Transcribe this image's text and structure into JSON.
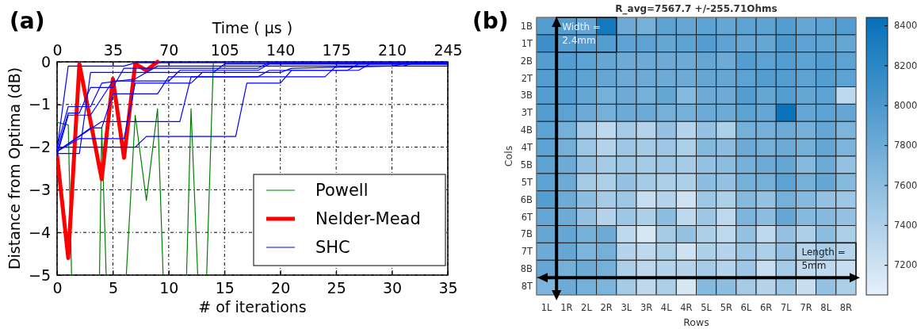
{
  "chart_data": [
    {
      "type": "line",
      "annotations": [
        "(a)"
      ],
      "xlabel": "# of iterations",
      "ylabel": "Distance from Optima (dB)",
      "x2label": "Time ( μs )",
      "xlim": [
        0,
        35
      ],
      "xticks": [
        0,
        5,
        10,
        15,
        20,
        25,
        30,
        35
      ],
      "x2lim": [
        0,
        245
      ],
      "x2ticks": [
        0,
        35,
        70,
        105,
        140,
        175,
        210,
        245
      ],
      "ylim": [
        -5,
        0
      ],
      "yticks": [
        -5,
        -4,
        -3,
        -2,
        -1,
        0
      ],
      "grid": true,
      "legend": "bottom right",
      "series": [
        {
          "name": "Powell",
          "color": "#008000",
          "x": [
            0,
            1,
            1.3,
            2,
            3.8,
            4,
            4.4,
            5,
            6.2,
            7,
            8,
            9,
            9.5,
            10,
            11.6,
            12,
            12.6,
            13,
            13.4,
            14
          ],
          "values": [
            -1.42,
            -1.48,
            -5,
            null,
            -5,
            -1.55,
            -5,
            null,
            -5,
            -1.25,
            -3.25,
            -1.1,
            -5,
            null,
            -5,
            -1.1,
            -5,
            null,
            -5,
            0
          ]
        },
        {
          "name": "Nelder-Mead",
          "color": "#ff0000",
          "x": [
            0,
            1,
            2,
            3,
            4,
            5,
            6,
            7,
            8,
            9
          ],
          "values": [
            -2.2,
            -4.6,
            -0.05,
            -1.4,
            -2.75,
            -0.4,
            -2.25,
            -0.05,
            -0.2,
            0
          ]
        },
        {
          "name": "SHC",
          "color": "#0000ff",
          "x": [
            0,
            1,
            6,
            7,
            35
          ],
          "values": [
            -2.05,
            -0.1,
            -0.1,
            -0.02,
            -0.02
          ]
        },
        {
          "color": "#0000ff",
          "x": [
            0,
            2,
            3,
            14,
            15,
            35
          ],
          "values": [
            -2.15,
            -2.15,
            -0.25,
            -0.25,
            -0.05,
            -0.05
          ]
        },
        {
          "color": "#0000ff",
          "x": [
            0,
            1,
            2,
            3,
            5,
            6,
            18,
            19,
            35
          ],
          "values": [
            -2.1,
            -1.2,
            -1.2,
            -0.6,
            -0.6,
            -0.15,
            -0.15,
            -0.02,
            -0.02
          ]
        },
        {
          "color": "#0000ff",
          "x": [
            0,
            1,
            3,
            4,
            7,
            9,
            31,
            32,
            35
          ],
          "values": [
            -2.0,
            -1.05,
            -1.05,
            -0.5,
            -0.4,
            -0.1,
            -0.1,
            -0.02,
            -0.02
          ]
        },
        {
          "color": "#0000ff",
          "x": [
            0,
            3,
            4,
            5,
            9,
            10,
            24,
            25,
            35
          ],
          "values": [
            -2.1,
            -1.55,
            -1.55,
            -0.75,
            -0.75,
            -0.35,
            -0.35,
            -0.1,
            -0.1
          ]
        },
        {
          "color": "#0000ff",
          "x": [
            0,
            1,
            3,
            5,
            10,
            11,
            18,
            19,
            35
          ],
          "values": [
            -2.2,
            -1.25,
            -1.25,
            -0.45,
            -0.45,
            -0.2,
            -0.2,
            -0.05,
            -0.05
          ]
        },
        {
          "color": "#0000ff",
          "x": [
            0,
            4,
            11,
            12,
            18,
            19,
            27,
            28,
            35
          ],
          "values": [
            -2.1,
            -1.4,
            -1.4,
            -0.35,
            -0.35,
            -0.2,
            -0.2,
            -0.05,
            -0.05
          ]
        },
        {
          "color": "#0000ff",
          "x": [
            0,
            2,
            6,
            7,
            12,
            13,
            20,
            21,
            30,
            31,
            35
          ],
          "values": [
            -2.1,
            -1.8,
            -1.8,
            -0.5,
            -0.5,
            -0.25,
            -0.25,
            -0.15,
            -0.1,
            -0.05,
            -0.05
          ]
        },
        {
          "color": "#0000ff",
          "x": [
            0,
            7,
            8,
            16,
            17,
            20,
            21,
            26,
            27,
            35
          ],
          "values": [
            -2.0,
            -2.0,
            -1.75,
            -1.75,
            -0.5,
            -0.5,
            -0.2,
            -0.2,
            -0.05,
            -0.05
          ]
        }
      ]
    },
    {
      "type": "heatmap",
      "title": "R_avg=7567.7 +/-255.71Ohms",
      "annotations": [
        "(b)",
        "Width =\n2.4mm",
        "Length =\n5mm"
      ],
      "xlabel": "Rows",
      "ylabel": "Cols",
      "categories": [
        "1L",
        "1R",
        "2L",
        "2R",
        "3L",
        "3R",
        "4L",
        "4R",
        "5L",
        "5R",
        "6L",
        "6R",
        "7L",
        "7R",
        "8L",
        "8R"
      ],
      "y_categories": [
        "1B",
        "1T",
        "2B",
        "2T",
        "3B",
        "3T",
        "4B",
        "4T",
        "5B",
        "5T",
        "6B",
        "6T",
        "7B",
        "7T",
        "8B",
        "8T"
      ],
      "clim": [
        7050,
        8440
      ],
      "cticks": [
        7200,
        7400,
        7600,
        7800,
        8000,
        8200,
        8400
      ],
      "cells": [
        [
          7950,
          7950,
          7850,
          8350,
          7800,
          7750,
          7900,
          7850,
          7900,
          7850,
          7900,
          7900,
          7950,
          7850,
          7900,
          7950
        ],
        [
          8100,
          7950,
          7950,
          7950,
          7900,
          7900,
          7850,
          7900,
          7950,
          7900,
          7850,
          7850,
          8000,
          7900,
          7900,
          7850
        ],
        [
          7950,
          7950,
          7900,
          7850,
          7800,
          7800,
          7800,
          7800,
          7850,
          7800,
          7950,
          7900,
          7950,
          7900,
          7950,
          7900
        ],
        [
          7950,
          7950,
          7900,
          7850,
          7800,
          7800,
          7800,
          7800,
          7850,
          7850,
          7900,
          7950,
          7950,
          7900,
          7950,
          7900
        ],
        [
          7950,
          7950,
          7850,
          7750,
          7800,
          7750,
          7850,
          7650,
          7800,
          7800,
          7950,
          7850,
          7950,
          7850,
          7900,
          7300
        ],
        [
          7950,
          7900,
          7800,
          7750,
          7800,
          7800,
          7750,
          7750,
          7800,
          7800,
          7900,
          7850,
          8400,
          7850,
          7900,
          7850
        ],
        [
          7900,
          7750,
          7450,
          7300,
          7450,
          7350,
          7550,
          7350,
          7550,
          7400,
          7750,
          7750,
          7800,
          7750,
          7850,
          7700
        ],
        [
          7900,
          7750,
          7500,
          7350,
          7500,
          7450,
          7500,
          7400,
          7650,
          7600,
          7800,
          7750,
          7800,
          7750,
          7850,
          7700
        ],
        [
          7900,
          7800,
          7550,
          7450,
          7500,
          7450,
          7500,
          7450,
          7550,
          7600,
          7750,
          7800,
          7850,
          7650,
          7800,
          7550
        ],
        [
          7900,
          7800,
          7450,
          7400,
          7550,
          7450,
          7400,
          7400,
          7600,
          7550,
          7750,
          7750,
          7900,
          7750,
          7850,
          7650
        ],
        [
          7950,
          7800,
          7600,
          7450,
          7500,
          7250,
          7350,
          7200,
          7500,
          7400,
          7650,
          7550,
          7750,
          7650,
          7550,
          7500
        ],
        [
          7850,
          7800,
          7550,
          7350,
          7500,
          7400,
          7600,
          7300,
          7500,
          7300,
          7700,
          7600,
          7850,
          7650,
          7650,
          7550
        ],
        [
          7850,
          7850,
          7750,
          7800,
          7300,
          7150,
          7450,
          7550,
          7400,
          7300,
          7550,
          7300,
          7550,
          7400,
          7600,
          7400
        ],
        [
          7800,
          7850,
          7700,
          7750,
          7350,
          7300,
          7400,
          7200,
          7400,
          7350,
          7500,
          7400,
          7550,
          7350,
          7450,
          7350
        ],
        [
          7850,
          7750,
          7800,
          7750,
          7400,
          7300,
          7350,
          7350,
          7450,
          7350,
          7500,
          7250,
          7450,
          7300,
          7300,
          7250
        ],
        [
          7700,
          7800,
          7750,
          7700,
          7450,
          7300,
          7400,
          7150,
          7650,
          7600,
          7450,
          7350,
          7500,
          7250,
          7550,
          7400
        ]
      ]
    }
  ]
}
